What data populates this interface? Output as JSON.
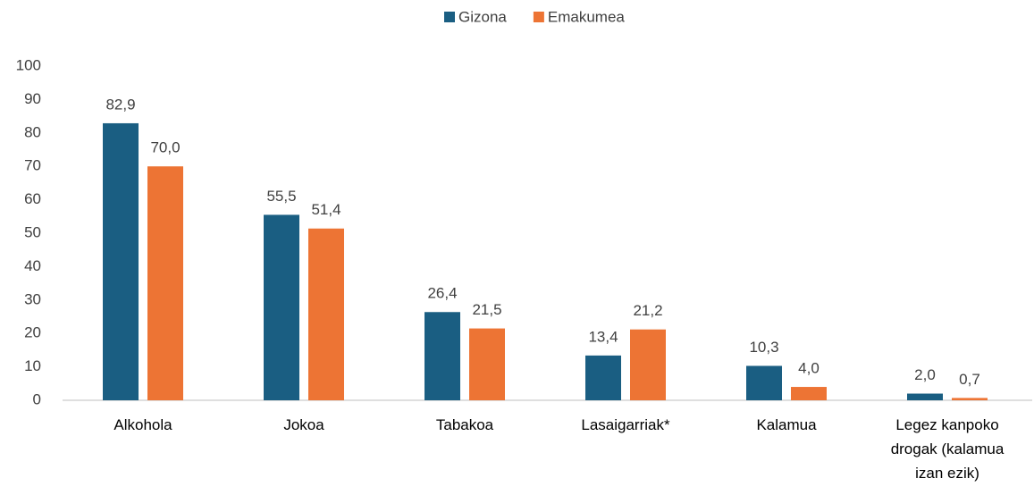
{
  "chart_data": {
    "type": "bar",
    "categories": [
      "Alkohola",
      "Jokoa",
      "Tabakoa",
      "Lasaigarriak*",
      "Kalamua",
      "Legez kanpoko drogak (kalamua izan ezik)"
    ],
    "series": [
      {
        "name": "Gizona",
        "color": "#1a5e82",
        "values": [
          82.9,
          55.5,
          26.4,
          13.4,
          10.3,
          2.0
        ],
        "value_labels": [
          "82,9",
          "55,5",
          "26,4",
          "13,4",
          "10,3",
          "2,0"
        ]
      },
      {
        "name": "Emakumea",
        "color": "#ed7434",
        "values": [
          70.0,
          51.4,
          21.5,
          21.2,
          4.0,
          0.7
        ],
        "value_labels": [
          "70,0",
          "51,4",
          "21,5",
          "21,2",
          "4,0",
          "0,7"
        ]
      }
    ],
    "ylim": [
      0,
      100
    ],
    "yticks": [
      0,
      10,
      20,
      30,
      40,
      50,
      60,
      70,
      80,
      90,
      100
    ],
    "grid": false,
    "legend": "top"
  }
}
